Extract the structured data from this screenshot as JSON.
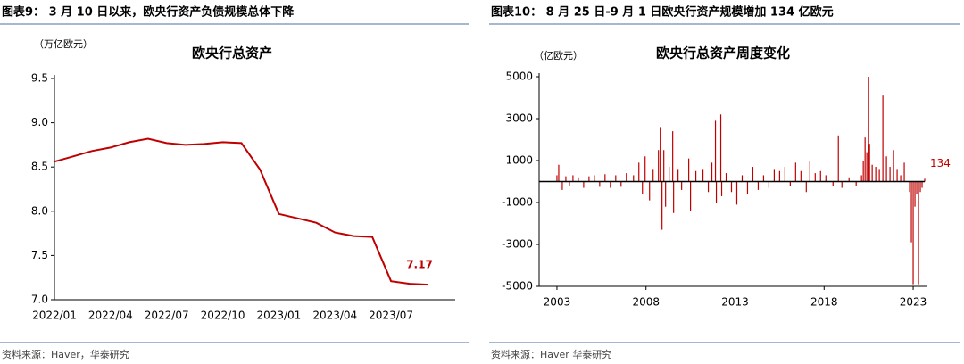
{
  "chart_data": [
    {
      "type": "line",
      "header": "图表9： 3 月 10 日以来，欧央行资产负债规模总体下降",
      "title": "欧央行总资产",
      "y_label": "（万亿欧元）",
      "source": "资料来源：Haver，华泰研究",
      "color": "#c00000",
      "categories": [
        "2022/01",
        null,
        null,
        "2022/04",
        null,
        null,
        "2022/07",
        null,
        null,
        "2022/10",
        null,
        null,
        "2023/01",
        null,
        null,
        "2023/04",
        null,
        null,
        "2023/07",
        null,
        null
      ],
      "values": [
        8.56,
        8.62,
        8.68,
        8.72,
        8.78,
        8.82,
        8.77,
        8.75,
        8.76,
        8.78,
        8.77,
        8.47,
        7.97,
        7.92,
        7.87,
        7.76,
        7.72,
        7.71,
        7.21,
        7.18,
        7.17
      ],
      "ylim": [
        7.0,
        9.5
      ],
      "yticks": [
        {
          "value": 7.0,
          "label": "7.0"
        },
        {
          "value": 7.5,
          "label": "7.5"
        },
        {
          "value": 8.0,
          "label": "8.0"
        },
        {
          "value": 8.5,
          "label": "8.5"
        },
        {
          "value": 9.0,
          "label": "9.0"
        },
        {
          "value": 9.5,
          "label": "9.5"
        }
      ]
    },
    {
      "type": "bar",
      "header": "图表10： 8 月 25 日-9 月 1 日欧央行资产规模增加 134 亿欧元",
      "title": "欧央行总资产周度变化",
      "y_label": "（亿欧元）",
      "source": "资料来源：Haver 华泰研究",
      "color": "#c00000",
      "x": [
        2003.0,
        2003.1,
        2003.3,
        2003.5,
        2003.7,
        2003.9,
        2004.2,
        2004.5,
        2004.8,
        2005.1,
        2005.4,
        2005.7,
        2006.0,
        2006.3,
        2006.6,
        2006.9,
        2007.3,
        2007.6,
        2007.8,
        2007.95,
        2008.2,
        2008.4,
        2008.7,
        2008.8,
        2008.85,
        2008.9,
        2009.0,
        2009.1,
        2009.3,
        2009.5,
        2009.55,
        2009.8,
        2010.0,
        2010.4,
        2010.5,
        2010.8,
        2011.2,
        2011.5,
        2011.7,
        2011.9,
        2011.95,
        2012.2,
        2012.25,
        2012.5,
        2012.8,
        2013.1,
        2013.4,
        2013.7,
        2014.0,
        2014.3,
        2014.6,
        2014.9,
        2015.2,
        2015.5,
        2015.8,
        2016.1,
        2016.4,
        2016.7,
        2017.0,
        2017.2,
        2017.5,
        2017.8,
        2018.1,
        2018.5,
        2018.8,
        2019.0,
        2019.4,
        2019.8,
        2020.1,
        2020.2,
        2020.3,
        2020.4,
        2020.5,
        2020.55,
        2020.7,
        2020.9,
        2021.1,
        2021.3,
        2021.5,
        2021.7,
        2021.9,
        2022.1,
        2022.3,
        2022.5,
        2022.8,
        2022.9,
        2023.0,
        2023.1,
        2023.2,
        2023.3,
        2023.4,
        2023.5,
        2023.65
      ],
      "values": [
        300,
        800,
        -400,
        250,
        -200,
        300,
        200,
        -300,
        250,
        300,
        -250,
        350,
        -300,
        300,
        -250,
        400,
        300,
        900,
        -600,
        1200,
        -900,
        600,
        1500,
        2600,
        -1800,
        -2300,
        1500,
        -1200,
        700,
        2400,
        -1500,
        600,
        -400,
        1100,
        -1400,
        500,
        600,
        -500,
        900,
        2900,
        -1000,
        3200,
        -700,
        400,
        -500,
        -1100,
        300,
        -600,
        700,
        -400,
        300,
        -300,
        600,
        500,
        700,
        -200,
        900,
        500,
        -500,
        1000,
        400,
        500,
        300,
        -200,
        2200,
        -300,
        200,
        -200,
        300,
        1000,
        2100,
        1400,
        5000,
        1800,
        800,
        700,
        600,
        4100,
        1200,
        700,
        1500,
        600,
        300,
        900,
        -500,
        -2900,
        -4900,
        -1200,
        -600,
        -4900,
        -500,
        -300,
        134
      ],
      "xlim": [
        2002,
        2023.8
      ],
      "xticks": [
        2003,
        2008,
        2013,
        2018,
        2023
      ],
      "ylim": [
        -5000,
        5000
      ],
      "yticks": [
        -5000,
        -3000,
        -1000,
        1000,
        3000,
        5000
      ]
    }
  ]
}
